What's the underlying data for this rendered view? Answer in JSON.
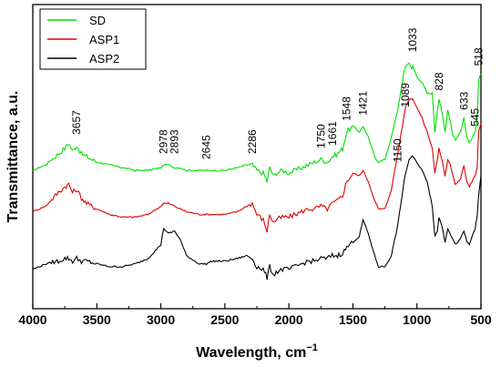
{
  "chart_data": {
    "type": "line",
    "xlabel": "Wavelength, cm",
    "xlabel_sup": "−1",
    "ylabel": "Transmittance, a.u.",
    "xlim": [
      4000,
      500
    ],
    "x_reversed": true,
    "ylim": [
      0,
      1
    ],
    "y_ticks_shown": false,
    "x_ticks": [
      4000,
      3500,
      3000,
      2500,
      2000,
      1500,
      1000,
      500
    ],
    "legend_position": "top-left",
    "grid": false,
    "series": [
      {
        "name": "SD",
        "color": "#00e000",
        "x": [
          4000,
          3900,
          3800,
          3750,
          3720,
          3690,
          3657,
          3620,
          3580,
          3500,
          3400,
          3300,
          3200,
          3100,
          3000,
          2978,
          2940,
          2893,
          2850,
          2800,
          2700,
          2645,
          2600,
          2500,
          2400,
          2330,
          2286,
          2250,
          2200,
          2170,
          2150,
          2120,
          2100,
          2050,
          2000,
          1950,
          1900,
          1850,
          1800,
          1750,
          1700,
          1661,
          1620,
          1580,
          1548,
          1500,
          1450,
          1421,
          1380,
          1330,
          1300,
          1250,
          1200,
          1150,
          1100,
          1089,
          1060,
          1040,
          1033,
          1000,
          960,
          920,
          880,
          860,
          840,
          828,
          800,
          780,
          760,
          740,
          720,
          700,
          660,
          633,
          610,
          590,
          570,
          545,
          530,
          518,
          500
        ],
        "y": [
          0.44,
          0.46,
          0.5,
          0.52,
          0.54,
          0.51,
          0.53,
          0.5,
          0.49,
          0.47,
          0.46,
          0.45,
          0.44,
          0.44,
          0.45,
          0.46,
          0.46,
          0.45,
          0.45,
          0.44,
          0.44,
          0.44,
          0.44,
          0.44,
          0.45,
          0.46,
          0.46,
          0.44,
          0.43,
          0.4,
          0.45,
          0.42,
          0.43,
          0.44,
          0.43,
          0.44,
          0.45,
          0.46,
          0.47,
          0.48,
          0.47,
          0.49,
          0.5,
          0.52,
          0.58,
          0.6,
          0.58,
          0.6,
          0.56,
          0.49,
          0.47,
          0.48,
          0.56,
          0.66,
          0.8,
          0.82,
          0.83,
          0.81,
          0.82,
          0.78,
          0.76,
          0.72,
          0.72,
          0.58,
          0.66,
          0.7,
          0.64,
          0.58,
          0.66,
          0.62,
          0.57,
          0.55,
          0.58,
          0.63,
          0.56,
          0.54,
          0.56,
          0.58,
          0.62,
          0.77,
          0.79
        ]
      },
      {
        "name": "ASP1",
        "color": "#e00000",
        "x": [
          4000,
          3900,
          3800,
          3750,
          3720,
          3690,
          3657,
          3620,
          3580,
          3500,
          3400,
          3300,
          3200,
          3100,
          3000,
          2978,
          2940,
          2893,
          2850,
          2800,
          2700,
          2645,
          2600,
          2500,
          2400,
          2330,
          2286,
          2250,
          2200,
          2170,
          2150,
          2120,
          2100,
          2050,
          2000,
          1950,
          1900,
          1850,
          1800,
          1750,
          1700,
          1661,
          1620,
          1580,
          1548,
          1500,
          1450,
          1421,
          1380,
          1330,
          1300,
          1250,
          1200,
          1150,
          1100,
          1089,
          1060,
          1040,
          1033,
          1000,
          960,
          920,
          880,
          860,
          840,
          828,
          800,
          780,
          760,
          740,
          720,
          700,
          660,
          633,
          610,
          590,
          570,
          545,
          530,
          518,
          500
        ],
        "y": [
          0.29,
          0.31,
          0.36,
          0.38,
          0.39,
          0.36,
          0.37,
          0.34,
          0.32,
          0.3,
          0.28,
          0.27,
          0.27,
          0.28,
          0.31,
          0.32,
          0.32,
          0.31,
          0.3,
          0.29,
          0.28,
          0.28,
          0.28,
          0.28,
          0.29,
          0.31,
          0.32,
          0.28,
          0.26,
          0.22,
          0.28,
          0.25,
          0.26,
          0.27,
          0.27,
          0.28,
          0.29,
          0.3,
          0.3,
          0.31,
          0.3,
          0.32,
          0.33,
          0.35,
          0.4,
          0.43,
          0.42,
          0.44,
          0.4,
          0.33,
          0.3,
          0.3,
          0.37,
          0.5,
          0.64,
          0.67,
          0.7,
          0.7,
          0.7,
          0.67,
          0.63,
          0.58,
          0.52,
          0.43,
          0.48,
          0.52,
          0.47,
          0.42,
          0.48,
          0.46,
          0.42,
          0.39,
          0.41,
          0.46,
          0.4,
          0.38,
          0.4,
          0.42,
          0.45,
          0.58,
          0.61
        ]
      },
      {
        "name": "ASP2",
        "color": "#000000",
        "x": [
          4000,
          3900,
          3800,
          3750,
          3720,
          3690,
          3657,
          3620,
          3580,
          3500,
          3400,
          3300,
          3200,
          3100,
          3000,
          2978,
          2940,
          2893,
          2850,
          2800,
          2700,
          2645,
          2600,
          2500,
          2400,
          2330,
          2286,
          2250,
          2200,
          2170,
          2150,
          2120,
          2100,
          2050,
          2000,
          1950,
          1900,
          1850,
          1800,
          1750,
          1700,
          1661,
          1620,
          1580,
          1548,
          1500,
          1450,
          1421,
          1380,
          1330,
          1300,
          1250,
          1200,
          1150,
          1100,
          1089,
          1060,
          1040,
          1033,
          1000,
          960,
          920,
          880,
          860,
          840,
          828,
          800,
          780,
          760,
          740,
          720,
          700,
          660,
          633,
          610,
          590,
          570,
          545,
          530,
          518,
          500
        ],
        "y": [
          0.08,
          0.1,
          0.11,
          0.12,
          0.12,
          0.11,
          0.12,
          0.11,
          0.11,
          0.1,
          0.09,
          0.09,
          0.1,
          0.12,
          0.17,
          0.23,
          0.21,
          0.22,
          0.19,
          0.13,
          0.1,
          0.1,
          0.11,
          0.11,
          0.12,
          0.13,
          0.12,
          0.09,
          0.08,
          0.05,
          0.09,
          0.06,
          0.07,
          0.08,
          0.08,
          0.09,
          0.1,
          0.11,
          0.11,
          0.12,
          0.12,
          0.13,
          0.13,
          0.14,
          0.16,
          0.18,
          0.2,
          0.26,
          0.21,
          0.13,
          0.09,
          0.09,
          0.13,
          0.24,
          0.4,
          0.43,
          0.48,
          0.49,
          0.49,
          0.47,
          0.44,
          0.4,
          0.31,
          0.2,
          0.22,
          0.27,
          0.23,
          0.18,
          0.23,
          0.21,
          0.19,
          0.17,
          0.19,
          0.22,
          0.18,
          0.17,
          0.2,
          0.23,
          0.27,
          0.35,
          0.42
        ]
      }
    ],
    "annotations": [
      {
        "text": "3657",
        "x": 3657,
        "y": 0.57
      },
      {
        "text": "2978",
        "x": 2978,
        "y": 0.5
      },
      {
        "text": "2893",
        "x": 2893,
        "y": 0.5
      },
      {
        "text": "2645",
        "x": 2645,
        "y": 0.48
      },
      {
        "text": "2286",
        "x": 2286,
        "y": 0.5
      },
      {
        "text": "1750",
        "x": 1750,
        "y": 0.52
      },
      {
        "text": "1661",
        "x": 1661,
        "y": 0.53
      },
      {
        "text": "1548",
        "x": 1548,
        "y": 0.62
      },
      {
        "text": "1421",
        "x": 1421,
        "y": 0.64
      },
      {
        "text": "1150",
        "x": 1150,
        "y": 0.47
      },
      {
        "text": "1089",
        "x": 1089,
        "y": 0.67
      },
      {
        "text": "1033",
        "x": 1033,
        "y": 0.87
      },
      {
        "text": "828",
        "x": 828,
        "y": 0.73
      },
      {
        "text": "633",
        "x": 633,
        "y": 0.66
      },
      {
        "text": "545",
        "x": 545,
        "y": 0.6
      },
      {
        "text": "518",
        "x": 518,
        "y": 0.82
      }
    ]
  }
}
